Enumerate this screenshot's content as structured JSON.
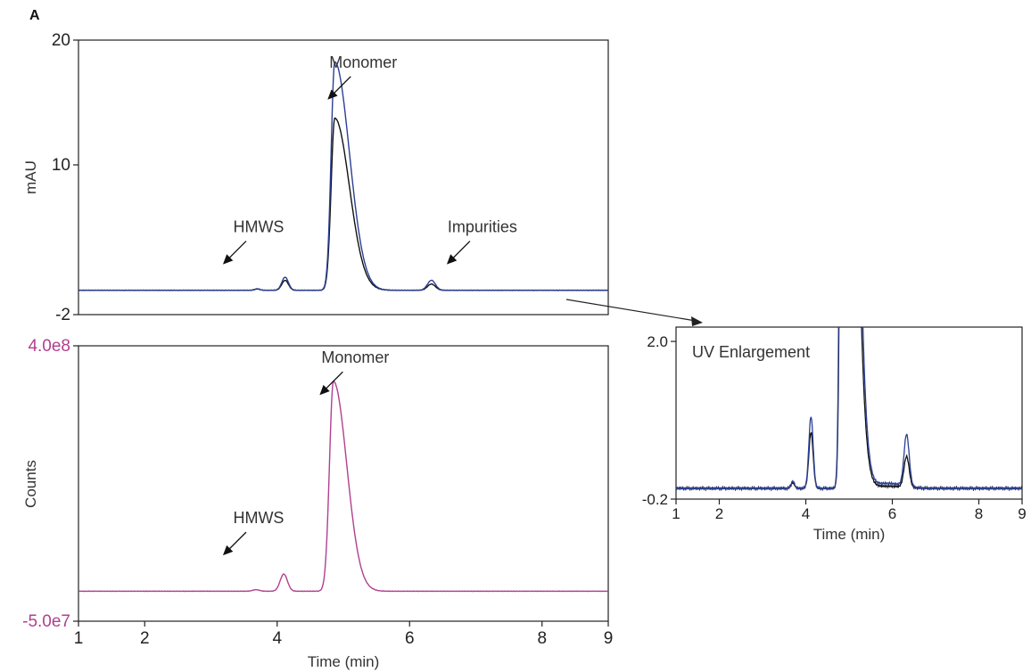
{
  "panel_label": "A",
  "colors": {
    "blue": "#2b3f93",
    "black": "#111111",
    "magenta": "#b0408f"
  },
  "chart_data": [
    {
      "id": "uv",
      "type": "line",
      "ylabel": "mAU",
      "xlim": [
        1,
        9
      ],
      "ylim": [
        -2,
        20
      ],
      "yticks": [
        {
          "v": 20,
          "label": "20"
        },
        {
          "v": 10,
          "label": "10"
        },
        {
          "v": -2,
          "label": "-2"
        }
      ],
      "baseline": -0.05,
      "series": [
        {
          "color": "blue",
          "peaks": [
            {
              "x": 3.7,
              "h": 0.12,
              "w": 0.04
            },
            {
              "x": 4.12,
              "h": 1.05,
              "w": 0.05
            },
            {
              "x": 4.87,
              "h": 18.3,
              "w": 0.055,
              "tail": 0.22
            },
            {
              "x": 6.33,
              "h": 0.8,
              "w": 0.06
            }
          ]
        },
        {
          "color": "black",
          "peaks": [
            {
              "x": 3.7,
              "h": 0.1,
              "w": 0.04
            },
            {
              "x": 4.12,
              "h": 0.8,
              "w": 0.05
            },
            {
              "x": 4.87,
              "h": 13.8,
              "w": 0.055,
              "tail": 0.22
            },
            {
              "x": 6.33,
              "h": 0.5,
              "w": 0.06
            }
          ]
        }
      ],
      "annotations": [
        {
          "text": "Monomer",
          "x": 5.3,
          "y": 17.8
        },
        {
          "text": "HMWS",
          "x": 3.72,
          "y": 4.6
        },
        {
          "text": "Impurities",
          "x": 7.1,
          "y": 4.6
        }
      ]
    },
    {
      "id": "ms",
      "type": "line",
      "ylabel": "Counts",
      "xlabel": "Time (min)",
      "xlim": [
        1,
        9
      ],
      "ylim": [
        -50000000.0,
        400000000.0
      ],
      "xticks": [
        {
          "v": 1,
          "label": "1"
        },
        {
          "v": 2,
          "label": "2"
        },
        {
          "v": 4,
          "label": "4"
        },
        {
          "v": 6,
          "label": "6"
        },
        {
          "v": 8,
          "label": "8"
        },
        {
          "v": 9,
          "label": "9"
        }
      ],
      "yticks": [
        {
          "v": 400000000.0,
          "label": "4.0e8"
        },
        {
          "v": -50000000.0,
          "label": "-5.0e7"
        }
      ],
      "baseline": -1000000.0,
      "series": [
        {
          "color": "magenta",
          "peaks": [
            {
              "x": 3.68,
              "h": 2500000.0,
              "w": 0.05
            },
            {
              "x": 4.1,
              "h": 28000000.0,
              "w": 0.055
            },
            {
              "x": 4.85,
              "h": 343000000.0,
              "w": 0.06,
              "tail": 0.2
            }
          ]
        }
      ],
      "annotations": [
        {
          "text": "Monomer",
          "x": 5.18,
          "y": 372000000.0
        },
        {
          "text": "HMWS",
          "x": 3.72,
          "y": 110000000.0
        }
      ]
    },
    {
      "id": "uv-zoom",
      "type": "line",
      "title": "UV Enlargement",
      "xlabel": "Time (min)",
      "xlim": [
        1,
        9
      ],
      "ylim": [
        -0.2,
        2.2
      ],
      "xticks": [
        {
          "v": 1,
          "label": "1"
        },
        {
          "v": 2,
          "label": "2"
        },
        {
          "v": 4,
          "label": "4"
        },
        {
          "v": 6,
          "label": "6"
        },
        {
          "v": 8,
          "label": "8"
        },
        {
          "v": 9,
          "label": "9"
        }
      ],
      "yticks": [
        {
          "v": 2.0,
          "label": "2.0"
        },
        {
          "v": -0.2,
          "label": "-0.2"
        }
      ],
      "baseline": -0.05,
      "series": [
        {
          "color": "blue",
          "peaks": [
            {
              "x": 3.7,
              "h": 0.1,
              "w": 0.04
            },
            {
              "x": 4.12,
              "h": 1.0,
              "w": 0.05
            },
            {
              "x": 4.87,
              "h": 18.3,
              "w": 0.055,
              "tail": 0.22
            },
            {
              "x": 5.9,
              "h": 0.07,
              "w": 0.35
            },
            {
              "x": 6.33,
              "h": 0.72,
              "w": 0.06
            }
          ]
        },
        {
          "color": "black",
          "peaks": [
            {
              "x": 3.7,
              "h": 0.08,
              "w": 0.04
            },
            {
              "x": 4.12,
              "h": 0.78,
              "w": 0.05
            },
            {
              "x": 4.87,
              "h": 13.8,
              "w": 0.055,
              "tail": 0.22
            },
            {
              "x": 5.9,
              "h": 0.03,
              "w": 0.35
            },
            {
              "x": 6.33,
              "h": 0.43,
              "w": 0.06
            }
          ]
        }
      ]
    }
  ]
}
